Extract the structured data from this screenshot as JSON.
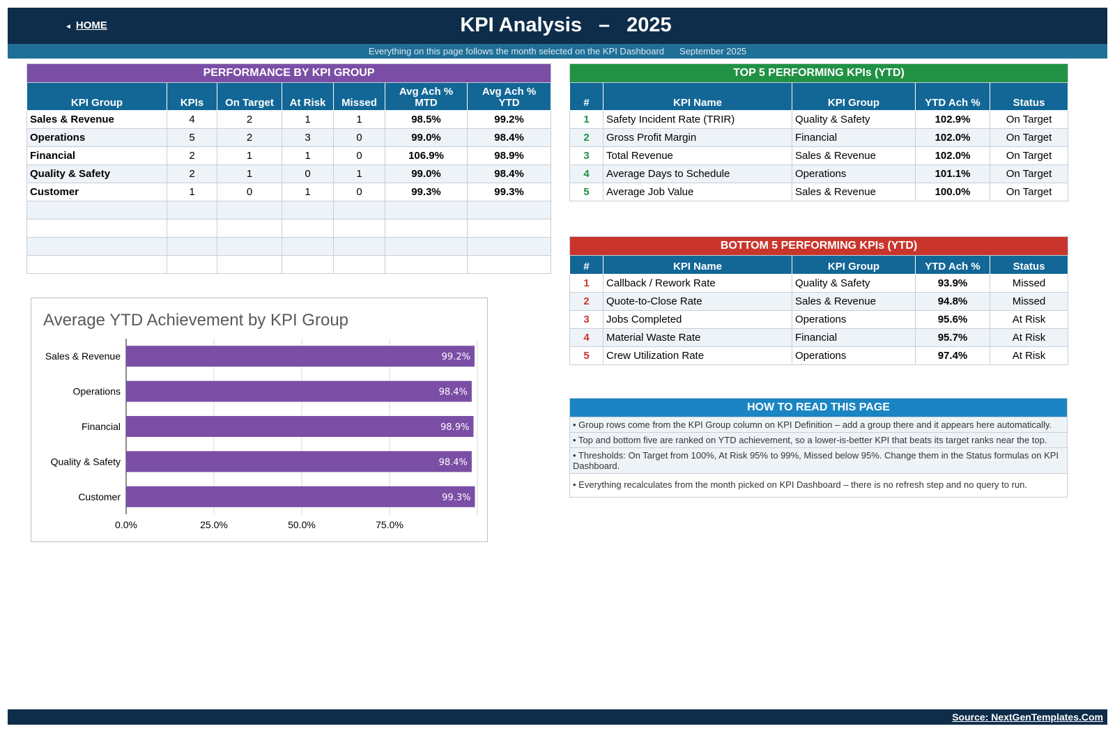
{
  "header": {
    "home_label": "HOME",
    "home_arrow": "◄",
    "title_left": "KPI Analysis",
    "title_dash": "–",
    "title_year": "2025",
    "subtitle": "Everything on this page follows the month selected on the KPI Dashboard",
    "month": "September 2025"
  },
  "performance": {
    "title": "PERFORMANCE BY KPI GROUP",
    "headers": [
      "KPI Group",
      "KPIs",
      "On Target",
      "At Risk",
      "Missed",
      "Avg Ach % MTD",
      "Avg Ach % YTD"
    ],
    "header_mtd_line1": "Avg Ach %",
    "header_mtd_line2": "MTD",
    "header_ytd_line1": "Avg Ach %",
    "header_ytd_line2": "YTD",
    "rows": [
      {
        "group": "Sales & Revenue",
        "kpis": "4",
        "on_target": "2",
        "at_risk": "1",
        "missed": "1",
        "mtd": "98.5%",
        "ytd": "99.2%"
      },
      {
        "group": "Operations",
        "kpis": "5",
        "on_target": "2",
        "at_risk": "3",
        "missed": "0",
        "mtd": "99.0%",
        "ytd": "98.4%"
      },
      {
        "group": "Financial",
        "kpis": "2",
        "on_target": "1",
        "at_risk": "1",
        "missed": "0",
        "mtd": "106.9%",
        "ytd": "98.9%"
      },
      {
        "group": "Quality & Safety",
        "kpis": "2",
        "on_target": "1",
        "at_risk": "0",
        "missed": "1",
        "mtd": "99.0%",
        "ytd": "98.4%"
      },
      {
        "group": "Customer",
        "kpis": "1",
        "on_target": "0",
        "at_risk": "1",
        "missed": "0",
        "mtd": "99.3%",
        "ytd": "99.3%"
      }
    ]
  },
  "top5": {
    "title": "TOP 5 PERFORMING KPIs  (YTD)",
    "headers": [
      "#",
      "KPI Name",
      "KPI Group",
      "YTD Ach %",
      "Status"
    ],
    "rows": [
      {
        "rank": "1",
        "name": "Safety Incident Rate (TRIR)",
        "group": "Quality & Safety",
        "ytd": "102.9%",
        "status": "On Target"
      },
      {
        "rank": "2",
        "name": "Gross Profit Margin",
        "group": "Financial",
        "ytd": "102.0%",
        "status": "On Target"
      },
      {
        "rank": "3",
        "name": "Total Revenue",
        "group": "Sales & Revenue",
        "ytd": "102.0%",
        "status": "On Target"
      },
      {
        "rank": "4",
        "name": "Average Days to Schedule",
        "group": "Operations",
        "ytd": "101.1%",
        "status": "On Target"
      },
      {
        "rank": "5",
        "name": "Average Job Value",
        "group": "Sales & Revenue",
        "ytd": "100.0%",
        "status": "On Target"
      }
    ]
  },
  "bottom5": {
    "title": "BOTTOM 5 PERFORMING KPIs  (YTD)",
    "headers": [
      "#",
      "KPI Name",
      "KPI Group",
      "YTD Ach %",
      "Status"
    ],
    "rows": [
      {
        "rank": "1",
        "name": "Callback / Rework Rate",
        "group": "Quality & Safety",
        "ytd": "93.9%",
        "status": "Missed"
      },
      {
        "rank": "2",
        "name": "Quote-to-Close Rate",
        "group": "Sales & Revenue",
        "ytd": "94.8%",
        "status": "Missed"
      },
      {
        "rank": "3",
        "name": "Jobs Completed",
        "group": "Operations",
        "ytd": "95.6%",
        "status": "At Risk"
      },
      {
        "rank": "4",
        "name": "Material Waste Rate",
        "group": "Financial",
        "ytd": "95.7%",
        "status": "At Risk"
      },
      {
        "rank": "5",
        "name": "Crew Utilization Rate",
        "group": "Operations",
        "ytd": "97.4%",
        "status": "At Risk"
      }
    ]
  },
  "howto": {
    "title": "HOW TO READ THIS PAGE",
    "items": [
      "•  Group rows come from the KPI Group column on KPI Definition – add a group there and it appears here automatically.",
      "•  Top and bottom five are ranked on YTD achievement, so a lower-is-better KPI that beats its target ranks near the top.",
      "•  Thresholds: On Target from 100%, At Risk 95% to 99%, Missed below 95%. Change them in the Status formulas on KPI Dashboard.",
      "•  Everything recalculates from the month picked on KPI Dashboard – there is no refresh step and no query to run."
    ]
  },
  "footer": {
    "source": "Source: NextGenTemplates.Com"
  },
  "colors": {
    "navy": "#0e2d4a",
    "purple": "#7b4ea6",
    "green": "#219144",
    "red": "#c9352c",
    "blue": "#1a85c2",
    "header_blue": "#126796"
  },
  "chart_data": {
    "type": "bar",
    "orientation": "horizontal",
    "title": "Average YTD Achievement by KPI Group",
    "categories": [
      "Sales & Revenue",
      "Operations",
      "Financial",
      "Quality & Safety",
      "Customer"
    ],
    "values": [
      99.2,
      98.4,
      98.9,
      98.4,
      99.3
    ],
    "value_labels": [
      "99.2%",
      "98.4%",
      "98.9%",
      "98.4%",
      "99.3%"
    ],
    "xlim": [
      0,
      100
    ],
    "x_ticks": [
      0,
      25,
      50,
      75
    ],
    "x_tick_labels": [
      "0.0%",
      "25.0%",
      "50.0%",
      "75.0%"
    ],
    "grid": true,
    "bar_color": "#7b4ea6"
  }
}
